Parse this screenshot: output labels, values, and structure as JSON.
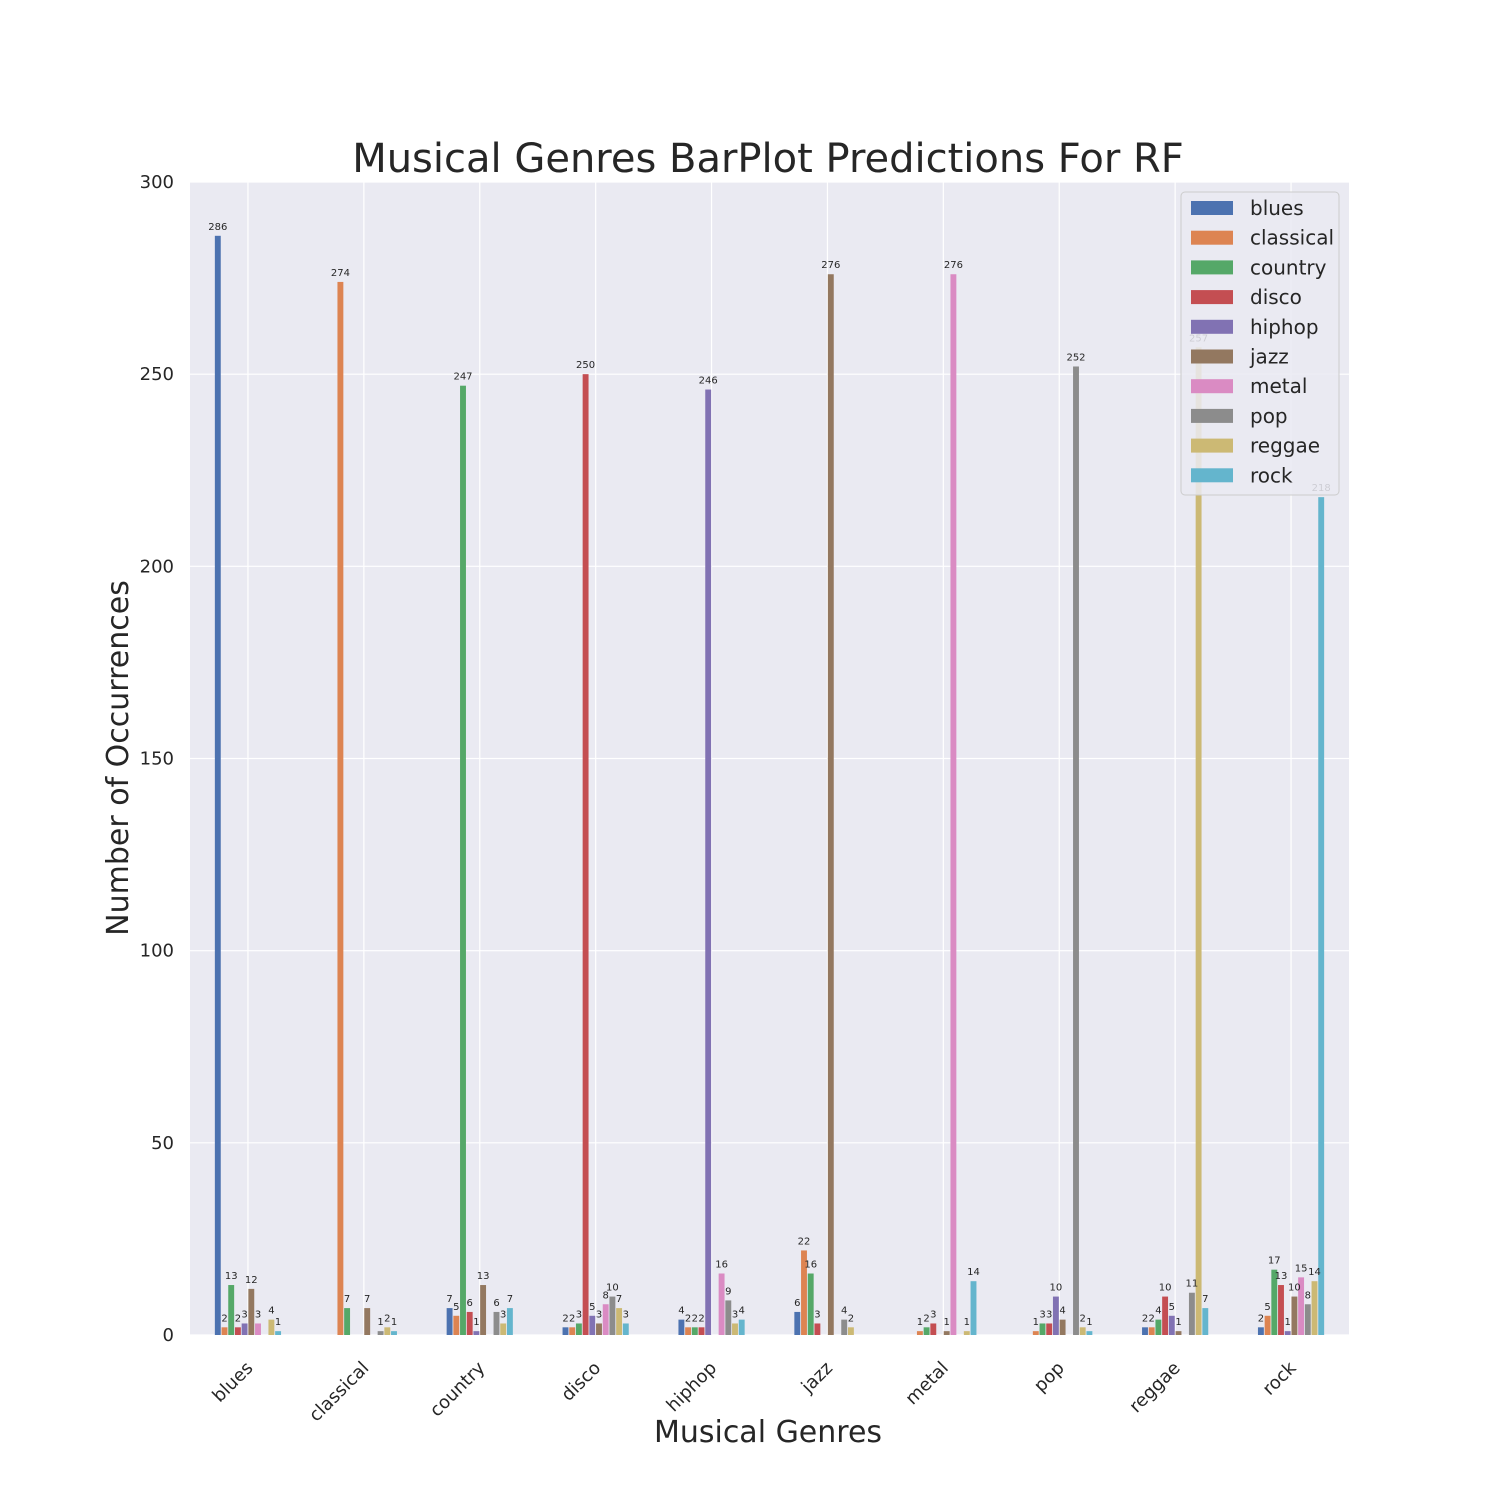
{
  "chart_data": {
    "type": "bar",
    "title": "Musical Genres BarPlot Predictions For RF",
    "xlabel": "Musical Genres",
    "ylabel": "Number of Occurrences",
    "ylim": [
      0,
      300
    ],
    "yticks": [
      "0",
      "50",
      "100",
      "150",
      "200",
      "250",
      "300"
    ],
    "grid": true,
    "legend_position": "top-right",
    "background": "#eaeaf2",
    "categories": [
      "blues",
      "classical",
      "country",
      "disco",
      "hiphop",
      "jazz",
      "metal",
      "pop",
      "reggae",
      "rock"
    ],
    "series": [
      {
        "name": "blues",
        "color": "#4c72b0",
        "values": [
          286,
          0,
          7,
          2,
          4,
          6,
          0,
          0,
          2,
          2
        ]
      },
      {
        "name": "classical",
        "color": "#dd8452",
        "values": [
          2,
          274,
          5,
          2,
          2,
          22,
          1,
          1,
          2,
          5
        ]
      },
      {
        "name": "country",
        "color": "#55a868",
        "values": [
          13,
          7,
          247,
          3,
          2,
          16,
          2,
          3,
          4,
          17
        ]
      },
      {
        "name": "disco",
        "color": "#c44e52",
        "values": [
          2,
          0,
          6,
          250,
          2,
          3,
          3,
          3,
          10,
          13
        ]
      },
      {
        "name": "hiphop",
        "color": "#8172b3",
        "values": [
          3,
          0,
          1,
          5,
          246,
          0,
          0,
          10,
          5,
          1
        ]
      },
      {
        "name": "jazz",
        "color": "#937860",
        "values": [
          12,
          7,
          13,
          3,
          0,
          276,
          1,
          4,
          1,
          10
        ]
      },
      {
        "name": "metal",
        "color": "#da8bc3",
        "values": [
          3,
          0,
          0,
          8,
          16,
          0,
          276,
          0,
          0,
          15
        ]
      },
      {
        "name": "pop",
        "color": "#8c8c8c",
        "values": [
          0,
          1,
          6,
          10,
          9,
          4,
          0,
          252,
          11,
          8
        ]
      },
      {
        "name": "reggae",
        "color": "#ccb974",
        "values": [
          4,
          2,
          3,
          7,
          3,
          2,
          1,
          2,
          257,
          14
        ]
      },
      {
        "name": "rock",
        "color": "#64b5cd",
        "values": [
          1,
          1,
          7,
          3,
          4,
          0,
          14,
          1,
          7,
          218
        ]
      }
    ]
  }
}
